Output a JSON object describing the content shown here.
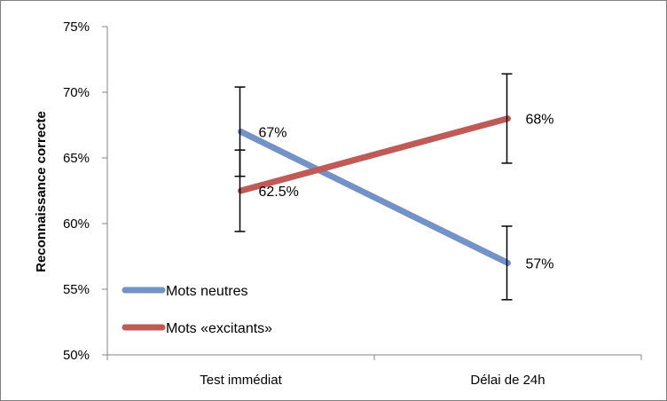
{
  "chart_data": {
    "type": "line",
    "title": "",
    "xlabel": "",
    "ylabel": "Reconnaissance correcte",
    "categories": [
      "Test immédiat",
      "Délai de 24h"
    ],
    "ylim": [
      0.5,
      0.75
    ],
    "yticks": [
      "50%",
      "55%",
      "60%",
      "65%",
      "70%",
      "75%"
    ],
    "grid": false,
    "legend_position": "bottom-left",
    "series": [
      {
        "name": "Mots neutres",
        "color": "#7393C8",
        "values": [
          0.67,
          0.57
        ],
        "labels": [
          "67%",
          "57%"
        ],
        "error": [
          0.034,
          0.028
        ]
      },
      {
        "name": "Mots «excitants»",
        "color": "#BF5A57",
        "values": [
          0.625,
          0.68
        ],
        "labels": [
          "62.5%",
          "68%"
        ],
        "error": [
          0.031,
          0.034
        ]
      }
    ]
  }
}
